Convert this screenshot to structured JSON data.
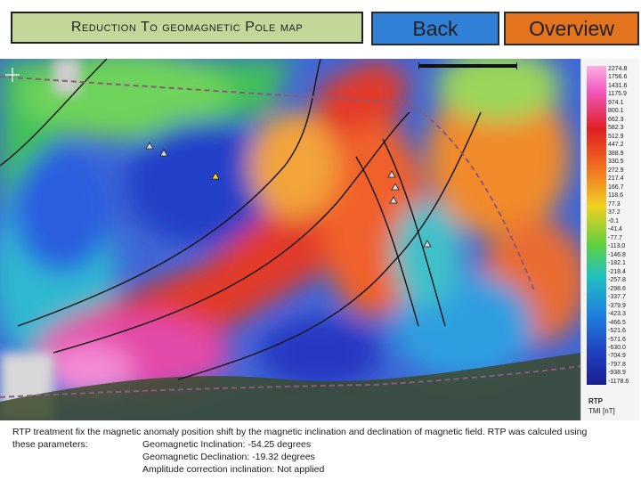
{
  "header": {
    "title": "Reduction To geomagnetic Pole map",
    "back_label": "Back",
    "overview_label": "Overview"
  },
  "legend": {
    "values": [
      "2274.8",
      "1756.6",
      "1431.6",
      "1175.9",
      "974.1",
      "800.1",
      "662.3",
      "582.3",
      "512.9",
      "447.2",
      "388.9",
      "330.5",
      "272.9",
      "217.4",
      "166.7",
      "118.6",
      "77.3",
      "37.2",
      "-0.1",
      "-41.4",
      "-77.7",
      "-113.0",
      "-146.8",
      "-182.1",
      "-218.4",
      "-257.8",
      "-298.6",
      "-337.7",
      "-379.9",
      "-423.3",
      "-466.5",
      "-521.6",
      "-571.6",
      "-630.0",
      "-704.9",
      "-797.8",
      "-938.9",
      "-1178.6"
    ],
    "title": "RTP",
    "unit": "TMI [nT]"
  },
  "colors": {
    "title_bg": "#c4d79b",
    "back_bg": "#2f80d6",
    "overview_bg": "#e3731d"
  },
  "caption": {
    "text_line1": "RTP treatment fix the magnetic anomaly position shift by the magnetic inclination and declination of magnetic field. RTP was calculed using",
    "lead": "these parameters:",
    "param1": "Geomagnetic Inclination: -54.25 degrees",
    "param2": "Geomagnetic Declination: -19.32 degrees",
    "param3": "Amplitude correction inclination: Not applied"
  }
}
